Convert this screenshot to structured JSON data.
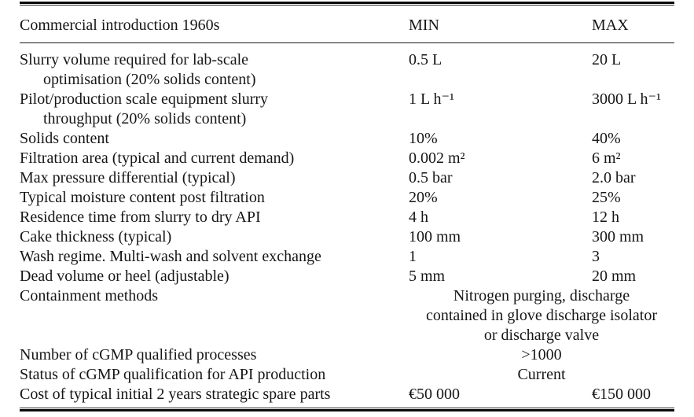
{
  "table": {
    "columns": [
      "Commercial introduction 1960s",
      "MIN",
      "MAX"
    ],
    "rows": [
      {
        "label": "Slurry volume required for lab-scale",
        "label_cont": "optimisation (20% solids content)",
        "min": "0.5 L",
        "max": "20 L"
      },
      {
        "label": "Pilot/production scale equipment slurry",
        "label_cont": "throughput (20% solids content)",
        "min": "1 L h⁻¹",
        "max": "3000 L h⁻¹"
      },
      {
        "label": "Solids content",
        "min": "10%",
        "max": "40%"
      },
      {
        "label": "Filtration area (typical and current demand)",
        "min": "0.002 m²",
        "max": "6 m²"
      },
      {
        "label": "Max pressure differential (typical)",
        "min": "0.5 bar",
        "max": "2.0 bar"
      },
      {
        "label": "Typical moisture content post filtration",
        "min": "20%",
        "max": "25%"
      },
      {
        "label": "Residence time from slurry to dry API",
        "min": "4 h",
        "max": "12 h"
      },
      {
        "label": "Cake thickness (typical)",
        "min": "100 mm",
        "max": "300 mm"
      },
      {
        "label": "Wash regime. Multi-wash and solvent exchange",
        "min": "1",
        "max": "3"
      },
      {
        "label": "Dead volume or heel (adjustable)",
        "min": "5 mm",
        "max": "20 mm"
      },
      {
        "label": "Containment methods",
        "span": "Nitrogen purging, discharge contained in glove discharge isolator or discharge valve"
      },
      {
        "label": "Number of cGMP qualified processes",
        "span": ">1000"
      },
      {
        "label": "Status of cGMP qualification for API production",
        "span": "Current"
      },
      {
        "label": "Cost of typical initial 2 years strategic spare parts",
        "min": "€50 000",
        "max": "€150 000"
      }
    ]
  }
}
